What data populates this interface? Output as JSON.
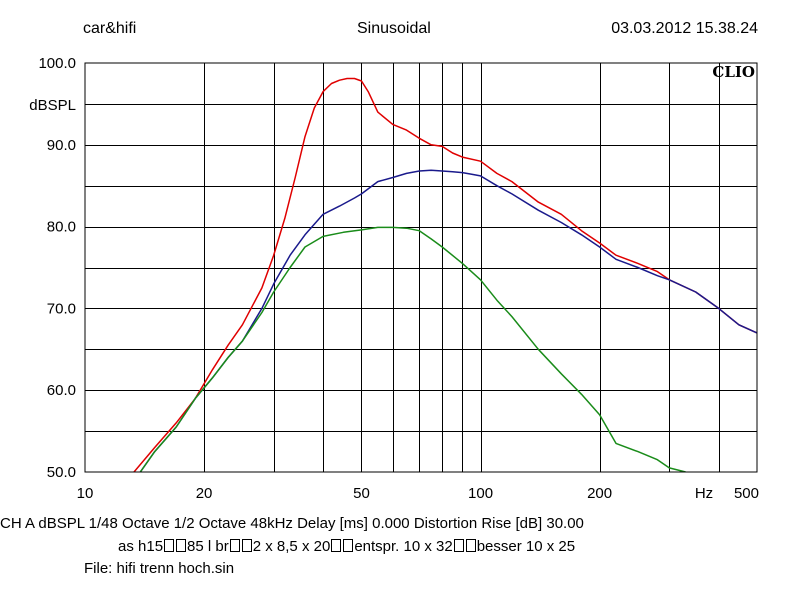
{
  "header": {
    "left": "car&hifi",
    "center": "Sinusoidal",
    "right": "03.03.2012 15.38.24"
  },
  "logo": {
    "text": "CLIO"
  },
  "footer": {
    "line1": "CH A   dBSPL    1/48 Octave   1/2 Octave   48kHz   Delay [ms] 0.000    Distortion Rise [dB] 30.00",
    "line2_parts": [
      "as h15",
      "85 l br",
      "2 x 8,5 x 20",
      "entspr. 10 x 32",
      "besser 10 x 25"
    ],
    "line3": "File: hifi trenn hoch.sin"
  },
  "chart_data": {
    "type": "line",
    "title": "",
    "xlabel": "Hz",
    "ylabel": "dBSPL",
    "x_scale": "log",
    "xlim": [
      10,
      500
    ],
    "ylim": [
      50,
      100
    ],
    "grid": true,
    "x_ticks": [
      10,
      20,
      50,
      100,
      200,
      500
    ],
    "x_tick_labels": [
      "10",
      "20",
      "50",
      "100",
      "200",
      "500"
    ],
    "x_minor_ticks": [
      30,
      40,
      60,
      70,
      80,
      90,
      300,
      400
    ],
    "y_ticks": [
      50,
      60,
      70,
      80,
      90,
      100
    ],
    "y_tick_labels": [
      "50.0",
      "60.0",
      "70.0",
      "80.0",
      "90.0",
      "100.0"
    ],
    "y_minor_ticks": [
      55,
      65,
      75,
      85,
      95
    ],
    "series": [
      {
        "color": "#e00000",
        "x": [
          13.3,
          15,
          17,
          19,
          21,
          23,
          25,
          28,
          30,
          32,
          34,
          36,
          38,
          40,
          42,
          44,
          46,
          48,
          50,
          52,
          55,
          60,
          65,
          70,
          75,
          80,
          85,
          90,
          100,
          110,
          120,
          140,
          160,
          180,
          200,
          220,
          250,
          280,
          300,
          350,
          400,
          450,
          500
        ],
        "y": [
          50,
          53,
          56,
          59,
          62.5,
          65.5,
          68,
          72.5,
          76.5,
          81,
          86,
          91,
          94.5,
          96.5,
          97.5,
          97.9,
          98.1,
          98.1,
          97.8,
          96.5,
          94,
          92.5,
          91.8,
          90.8,
          90,
          89.8,
          89,
          88.5,
          88,
          86.5,
          85.5,
          83,
          81.5,
          79.5,
          78,
          76.5,
          75.5,
          74.5,
          73.5,
          72,
          70,
          68,
          67
        ]
      },
      {
        "color": "#1a1a8c",
        "x": [
          13.8,
          15,
          17,
          19,
          21,
          23,
          25,
          28,
          30,
          33,
          36,
          40,
          44,
          48,
          50,
          55,
          60,
          65,
          70,
          75,
          80,
          85,
          90,
          95,
          100,
          110,
          120,
          140,
          160,
          180,
          200,
          220,
          250,
          280,
          300,
          350,
          400,
          450,
          500
        ],
        "y": [
          50,
          52.5,
          55.5,
          59,
          61.5,
          64,
          66,
          70,
          73,
          76.5,
          79,
          81.5,
          82.5,
          83.5,
          84,
          85.5,
          86,
          86.5,
          86.8,
          86.9,
          86.8,
          86.7,
          86.6,
          86.4,
          86.2,
          85,
          84,
          82,
          80.5,
          79,
          77.5,
          76,
          75,
          74,
          73.5,
          72,
          70,
          68,
          67
        ]
      },
      {
        "color": "#1a8c1a",
        "x": [
          13.8,
          15,
          17,
          19,
          21,
          23,
          25,
          28,
          30,
          33,
          36,
          40,
          45,
          50,
          55,
          60,
          65,
          70,
          75,
          80,
          90,
          100,
          110,
          120,
          140,
          160,
          180,
          200,
          220,
          250,
          280,
          300,
          330
        ],
        "y": [
          50,
          52.5,
          55.5,
          59,
          61.5,
          64,
          66,
          69.5,
          72,
          75,
          77.5,
          78.8,
          79.3,
          79.6,
          79.9,
          79.9,
          79.8,
          79.5,
          78.5,
          77.5,
          75.5,
          73.5,
          71,
          69,
          65,
          62,
          59.5,
          57,
          53.5,
          52.5,
          51.5,
          50.5,
          50
        ]
      }
    ]
  }
}
